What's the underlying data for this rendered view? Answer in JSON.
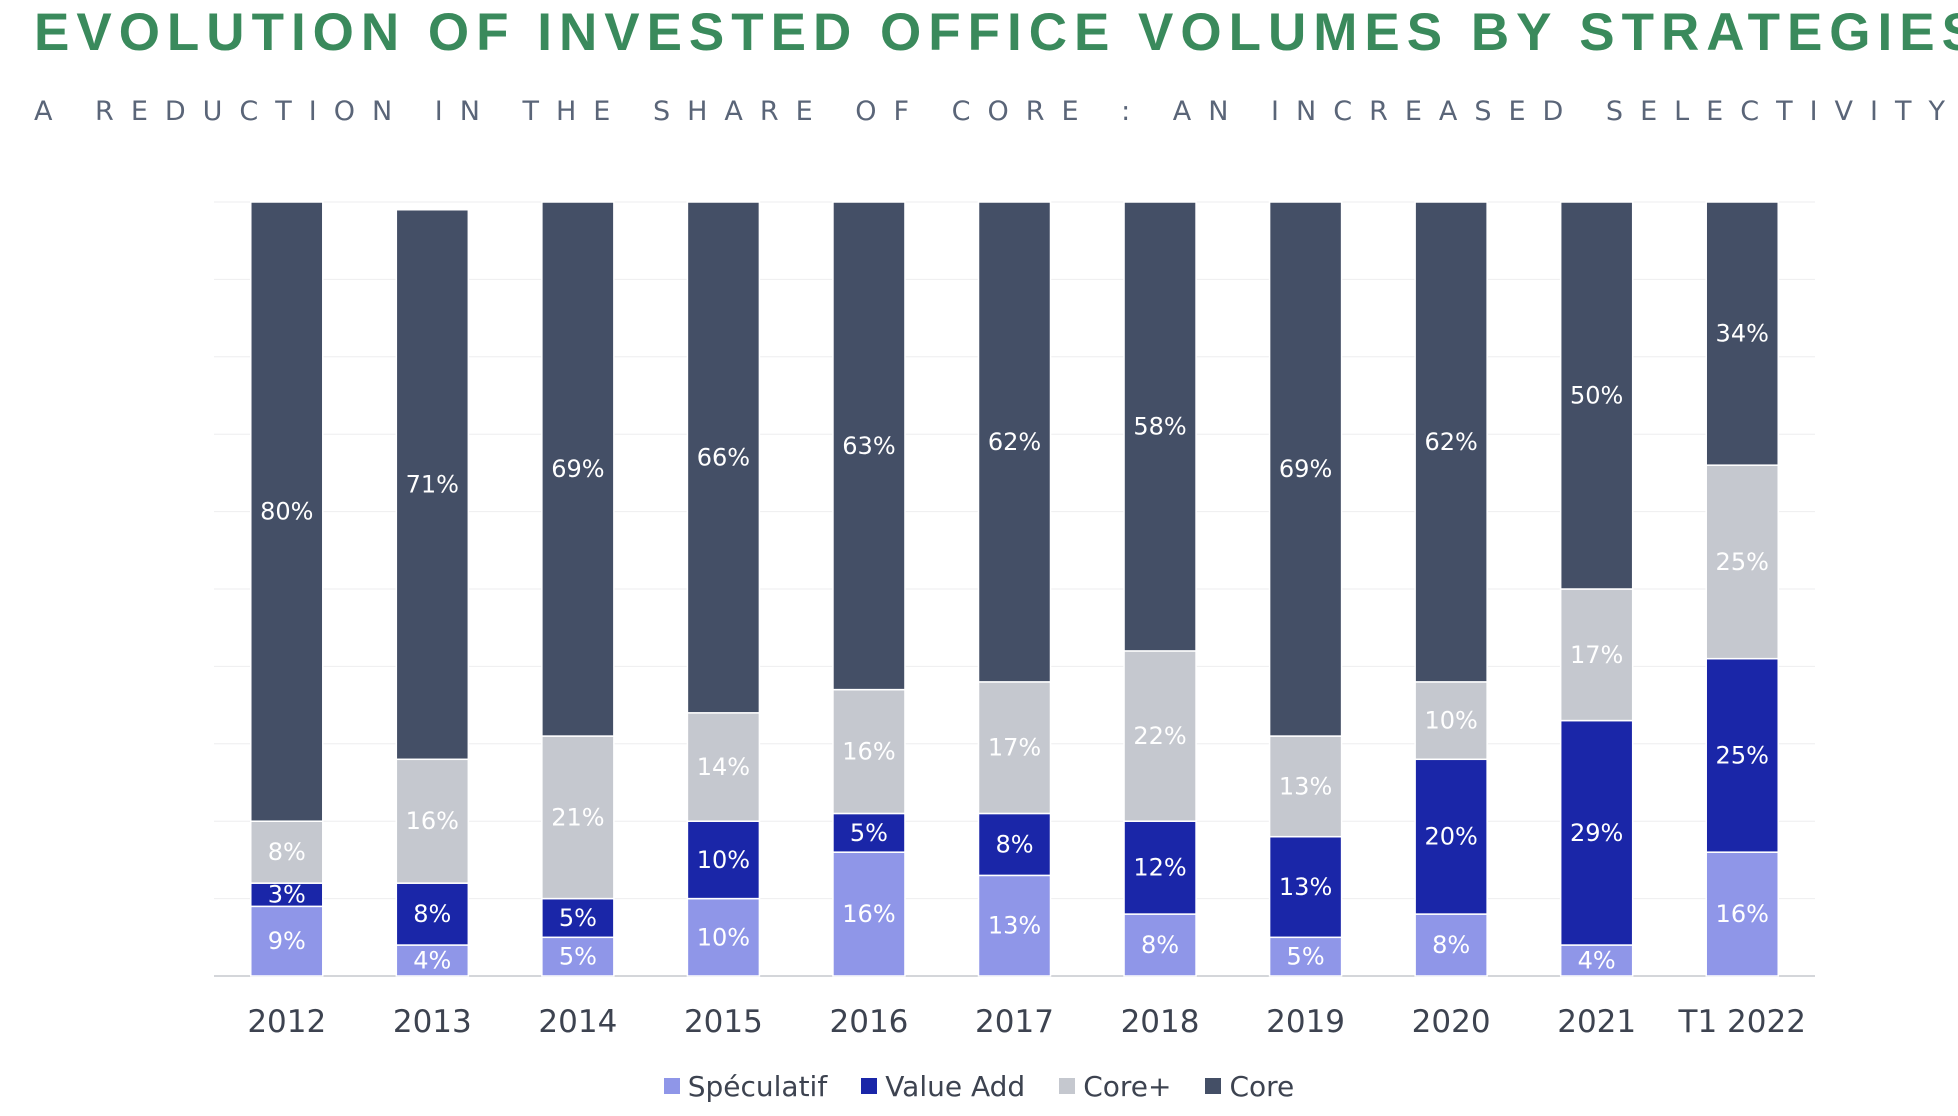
{
  "header": {
    "title": "EVOLUTION OF INVESTED OFFICE VOLUMES BY STRATEGIES",
    "subtitle": "A REDUCTION IN THE SHARE OF CORE : AN INCREASED SELECTIVITY"
  },
  "chart_data": {
    "type": "bar",
    "stacked": true,
    "title": "EVOLUTION OF INVESTED OFFICE VOLUMES BY STRATEGIES",
    "subtitle": "A REDUCTION IN THE SHARE OF CORE : AN INCREASED SELECTIVITY",
    "categories": [
      "2012",
      "2013",
      "2014",
      "2015",
      "2016",
      "2017",
      "2018",
      "2019",
      "2020",
      "2021",
      "T1 2022"
    ],
    "series": [
      {
        "name": "Spéculatif",
        "color": "#8f96e8",
        "label_color": "#ffffff",
        "values": [
          9,
          4,
          5,
          10,
          16,
          13,
          8,
          5,
          8,
          4,
          16
        ]
      },
      {
        "name": "Value Add",
        "color": "#1a26a8",
        "label_color": "#ffffff",
        "values": [
          3,
          8,
          5,
          10,
          5,
          8,
          12,
          13,
          20,
          29,
          25
        ]
      },
      {
        "name": "Core+",
        "color": "#c5c8cf",
        "label_color": "#ffffff",
        "values": [
          8,
          16,
          21,
          14,
          16,
          17,
          22,
          13,
          10,
          17,
          25
        ]
      },
      {
        "name": "Core",
        "color": "#444f66",
        "label_color": "#ffffff",
        "values": [
          80,
          71,
          69,
          66,
          63,
          62,
          58,
          69,
          62,
          50,
          34
        ]
      }
    ],
    "value_suffix": "%",
    "ylim": [
      0,
      100
    ],
    "grid": true,
    "legend_position": "bottom"
  }
}
